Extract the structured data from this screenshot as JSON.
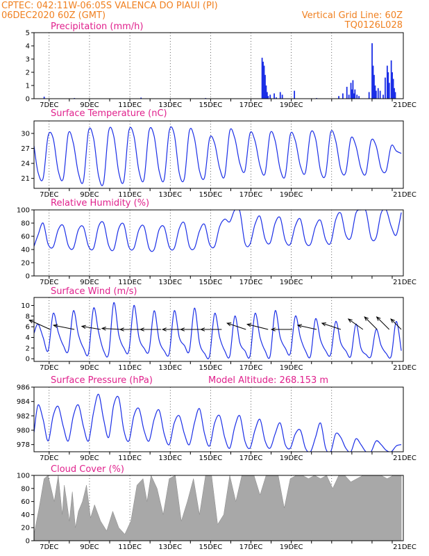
{
  "header": {
    "line1": "CPTEC:   042:11W-06:05S   VALENCA DO PIAUI (PI)",
    "line2": "06DEC2020 60Z (GMT)",
    "grid_note": "Vertical Grid Line: 60Z",
    "code": "TQ0126L028"
  },
  "x_dates": [
    "7DEC",
    "9DEC",
    "11DEC",
    "13DEC",
    "15DEC",
    "17DEC",
    "19DEC",
    "21DEC"
  ],
  "colors": {
    "header": "#f08020",
    "title": "#e0208c",
    "series": "#1a2ee6",
    "cloud": "#a8a8a8"
  },
  "chart_data": [
    {
      "type": "bar",
      "title": "Precipitation (mm/h)",
      "ylim": [
        0,
        5
      ],
      "yticks": [
        "0",
        "1",
        "2",
        "3",
        "4",
        "5"
      ],
      "x_unit": "days after 06DEC 06Z",
      "series": [
        {
          "x": [
            0.5,
            2.0,
            5.3,
            8.5,
            11.3,
            11.35,
            11.4,
            11.45,
            11.5,
            11.55,
            11.6,
            11.7,
            11.9,
            12.0,
            12.2,
            12.3,
            12.9,
            14.0,
            15.1,
            15.3,
            15.5,
            15.6,
            15.7,
            15.75,
            15.8,
            15.85,
            15.9,
            16.0,
            16.1,
            16.6,
            16.75,
            16.8,
            16.85,
            16.9,
            16.95,
            17.05,
            17.15,
            17.3,
            17.4,
            17.5,
            17.55,
            17.6,
            17.7,
            17.75,
            17.8,
            17.85,
            17.9
          ],
          "values": [
            0.15,
            0.05,
            0.08,
            0.05,
            3.1,
            2.8,
            2.5,
            1.8,
            1.0,
            0.5,
            0.2,
            0.3,
            0.4,
            0.1,
            0.5,
            0.3,
            0.6,
            0.05,
            0.2,
            0.4,
            0.9,
            0.3,
            1.2,
            0.7,
            1.4,
            0.4,
            0.7,
            0.3,
            0.2,
            0.5,
            4.2,
            2.5,
            1.8,
            1.0,
            0.6,
            0.8,
            0.6,
            0.3,
            1.6,
            2.5,
            2.0,
            1.2,
            2.9,
            2.0,
            1.5,
            0.8,
            0.5
          ]
        }
      ]
    },
    {
      "type": "line",
      "title": "Surface Temperature (nC)",
      "ylim": [
        19,
        32.5
      ],
      "yticks": [
        "21",
        "24",
        "27",
        "30"
      ],
      "x_unit": "days after 06DEC 06Z",
      "series": [
        {
          "x": [
            0,
            0.2,
            0.45,
            0.7,
            0.95,
            1.2,
            1.45,
            1.7,
            1.95,
            2.2,
            2.45,
            2.7,
            2.95,
            3.2,
            3.45,
            3.7,
            3.95,
            4.2,
            4.45,
            4.7,
            4.95,
            5.2,
            5.45,
            5.7,
            5.95,
            6.2,
            6.45,
            6.7,
            6.95,
            7.2,
            7.45,
            7.7,
            7.95,
            8.2,
            8.45,
            8.7,
            8.95,
            9.2,
            9.45,
            9.7,
            9.95,
            10.2,
            10.45,
            10.7,
            10.95,
            11.2,
            11.45,
            11.7,
            11.95,
            12.2,
            12.45,
            12.7,
            12.95,
            13.2,
            13.45,
            13.7,
            13.95,
            14.2,
            14.45,
            14.7,
            14.95,
            15.2,
            15.45,
            15.7,
            15.95,
            16.2,
            16.45,
            16.7,
            16.95,
            17.2,
            17.45,
            17.7,
            17.95,
            18.2
          ],
          "values": [
            27.5,
            22.2,
            21.0,
            29.5,
            29.0,
            22.5,
            21.0,
            30.0,
            28.0,
            22.0,
            20.5,
            30.5,
            29.0,
            21.5,
            20.2,
            30.5,
            29.5,
            22.2,
            20.5,
            30.5,
            29.5,
            22.5,
            20.8,
            30.5,
            29.5,
            22.5,
            20.8,
            30.5,
            29.8,
            22.0,
            21.0,
            30.5,
            29.0,
            22.5,
            21.2,
            29.0,
            28.0,
            23.0,
            21.5,
            30.5,
            29.0,
            24.0,
            22.5,
            30.0,
            28.5,
            23.5,
            22.0,
            30.0,
            28.5,
            22.8,
            21.5,
            29.8,
            28.5,
            23.5,
            22.2,
            30.0,
            29.0,
            22.5,
            21.8,
            30.2,
            28.5,
            22.8,
            22.2,
            29.0,
            27.5,
            23.0,
            22.0,
            28.5,
            27.5,
            23.0,
            22.5,
            27.5,
            26.5,
            26.0
          ]
        }
      ]
    },
    {
      "type": "line",
      "title": "Relative Humidity (%)",
      "ylim": [
        0,
        100
      ],
      "yticks": [
        "0",
        "20",
        "40",
        "60",
        "80",
        "100"
      ],
      "x_unit": "days after 06DEC 06Z",
      "series": [
        {
          "x": [
            0,
            0.2,
            0.45,
            0.7,
            0.95,
            1.2,
            1.45,
            1.7,
            1.95,
            2.2,
            2.45,
            2.7,
            2.95,
            3.2,
            3.45,
            3.7,
            3.95,
            4.2,
            4.45,
            4.7,
            4.95,
            5.2,
            5.45,
            5.7,
            5.95,
            6.2,
            6.45,
            6.7,
            6.95,
            7.2,
            7.45,
            7.7,
            7.95,
            8.2,
            8.45,
            8.7,
            8.95,
            9.2,
            9.45,
            9.7,
            9.95,
            10.2,
            10.45,
            10.7,
            10.95,
            11.2,
            11.45,
            11.7,
            11.95,
            12.2,
            12.45,
            12.7,
            12.95,
            13.2,
            13.45,
            13.7,
            13.95,
            14.2,
            14.45,
            14.7,
            14.95,
            15.2,
            15.45,
            15.7,
            15.95,
            16.2,
            16.45,
            16.7,
            16.95,
            17.2,
            17.45,
            17.7,
            17.95,
            18.2
          ],
          "values": [
            45,
            62,
            80,
            48,
            44,
            70,
            76,
            46,
            42,
            70,
            74,
            45,
            42,
            75,
            80,
            46,
            40,
            72,
            78,
            44,
            42,
            70,
            75,
            42,
            40,
            70,
            74,
            44,
            42,
            72,
            80,
            45,
            42,
            68,
            78,
            48,
            45,
            75,
            86,
            82,
            100,
            98,
            50,
            48,
            78,
            90,
            56,
            50,
            80,
            88,
            54,
            48,
            76,
            86,
            52,
            48,
            75,
            84,
            55,
            50,
            85,
            95,
            62,
            58,
            95,
            100,
            98,
            58,
            58,
            95,
            100,
            75,
            62,
            96
          ]
        }
      ]
    },
    {
      "type": "line",
      "title": "Surface Wind (m/s)",
      "ylim": [
        -0.5,
        11.5
      ],
      "yticks": [
        "0",
        "2",
        "4",
        "6",
        "8",
        "10"
      ],
      "x_unit": "days after 06DEC 06Z",
      "series": [
        {
          "x": [
            0,
            0.2,
            0.45,
            0.7,
            0.95,
            1.2,
            1.45,
            1.7,
            1.95,
            2.2,
            2.45,
            2.7,
            2.95,
            3.2,
            3.45,
            3.7,
            3.95,
            4.2,
            4.45,
            4.7,
            4.95,
            5.2,
            5.45,
            5.7,
            5.95,
            6.2,
            6.45,
            6.7,
            6.95,
            7.2,
            7.45,
            7.7,
            7.95,
            8.2,
            8.45,
            8.7,
            8.95,
            9.2,
            9.45,
            9.7,
            9.95,
            10.2,
            10.45,
            10.7,
            10.95,
            11.2,
            11.45,
            11.7,
            11.95,
            12.2,
            12.45,
            12.7,
            12.95,
            13.2,
            13.45,
            13.7,
            13.95,
            14.2,
            14.45,
            14.7,
            14.95,
            15.2,
            15.45,
            15.7,
            15.95,
            16.2,
            16.45,
            16.7,
            16.95,
            17.2,
            17.45,
            17.7,
            17.95,
            18.2
          ],
          "values": [
            4.8,
            6.5,
            4.0,
            1.5,
            8.5,
            5.0,
            2.5,
            1.5,
            9.0,
            4.5,
            2.0,
            1.0,
            9.5,
            5.0,
            1.5,
            1.0,
            10.5,
            4.5,
            2.0,
            1.5,
            10.0,
            4.0,
            2.0,
            1.5,
            9.0,
            3.5,
            1.5,
            1.0,
            9.0,
            4.0,
            2.5,
            1.5,
            9.5,
            3.0,
            1.0,
            0.5,
            8.5,
            4.0,
            1.5,
            0.5,
            8.0,
            3.0,
            1.5,
            0.5,
            8.5,
            4.0,
            1.5,
            0.5,
            9.0,
            4.0,
            2.0,
            1.0,
            8.0,
            4.0,
            1.5,
            0.5,
            7.5,
            3.5,
            1.5,
            0.8,
            7.0,
            3.0,
            1.5,
            0.5,
            6.5,
            2.0,
            0.8,
            0.5,
            5.5,
            2.5,
            1.0,
            0.5,
            7.0,
            1.5
          ]
        }
      ],
      "vectors": {
        "x": [
          0.8,
          2.0,
          3.3,
          4.3,
          5.3,
          6.3,
          7.4,
          8.3,
          9.3,
          10.5,
          11.6,
          12.8,
          14.0,
          15.2,
          16.3,
          17.0,
          17.6,
          18.2
        ],
        "u": [
          -1.0,
          -1.0,
          -0.9,
          -0.9,
          -1.0,
          -1.0,
          -1.0,
          -1.0,
          -1.0,
          -0.9,
          -1.0,
          -1.0,
          -0.9,
          -0.9,
          -0.7,
          -0.6,
          -0.6,
          -0.5
        ],
        "v": [
          0.45,
          0.2,
          0.15,
          0.05,
          0.0,
          0.0,
          0.0,
          0.0,
          0.0,
          0.3,
          0.25,
          0.0,
          0.2,
          0.3,
          0.5,
          0.6,
          0.6,
          0.5
        ]
      }
    },
    {
      "type": "line",
      "title": "Surface Pressure (hPa)",
      "annotation": "Model Altitude: 268.153 m",
      "ylim": [
        977,
        986
      ],
      "yticks": [
        "978",
        "980",
        "982",
        "984",
        "986"
      ],
      "x_unit": "days after 06DEC 06Z",
      "series": [
        {
          "x": [
            0,
            0.2,
            0.45,
            0.7,
            0.95,
            1.2,
            1.45,
            1.7,
            1.95,
            2.2,
            2.45,
            2.7,
            2.95,
            3.2,
            3.45,
            3.7,
            3.95,
            4.2,
            4.45,
            4.7,
            4.95,
            5.2,
            5.45,
            5.7,
            5.95,
            6.2,
            6.45,
            6.7,
            6.95,
            7.2,
            7.45,
            7.7,
            7.95,
            8.2,
            8.45,
            8.7,
            8.95,
            9.2,
            9.45,
            9.7,
            9.95,
            10.2,
            10.45,
            10.7,
            10.95,
            11.2,
            11.45,
            11.7,
            11.95,
            12.2,
            12.45,
            12.7,
            12.95,
            13.2,
            13.45,
            13.7,
            13.95,
            14.2,
            14.45,
            14.7,
            14.95,
            15.2,
            15.45,
            15.7,
            15.95,
            16.2,
            16.45,
            16.7,
            16.95,
            17.2,
            17.45,
            17.7,
            17.95,
            18.2
          ],
          "values": [
            979.7,
            983.5,
            981.5,
            978.5,
            982.0,
            983.3,
            980.5,
            978.5,
            982.0,
            983.5,
            980.5,
            978.5,
            982.5,
            985.0,
            981.5,
            979.0,
            983.5,
            984.5,
            980.0,
            978.5,
            982.0,
            983.0,
            980.0,
            978.5,
            981.5,
            982.8,
            979.5,
            978.0,
            981.0,
            982.0,
            979.5,
            978.0,
            981.0,
            983.0,
            979.5,
            977.8,
            981.0,
            982.0,
            979.0,
            977.5,
            980.5,
            982.0,
            978.5,
            977.5,
            980.0,
            981.5,
            978.5,
            977.5,
            979.5,
            981.0,
            978.0,
            977.5,
            979.5,
            980.0,
            977.5,
            977.0,
            979.0,
            981.0,
            977.5,
            977.0,
            979.5,
            979.0,
            977.5,
            977.0,
            978.8,
            978.0,
            977.0,
            977.0,
            978.5,
            978.0,
            977.2,
            977.0,
            977.8,
            978.0
          ]
        }
      ]
    },
    {
      "type": "area",
      "title": "Cloud Cover (%)",
      "ylim": [
        0,
        100
      ],
      "yticks": [
        "0",
        "20",
        "40",
        "60",
        "80",
        "100"
      ],
      "x_unit": "days after 06DEC 06Z",
      "series": [
        {
          "x": [
            0,
            0.25,
            0.5,
            0.7,
            0.85,
            1.0,
            1.2,
            1.4,
            1.5,
            1.6,
            1.75,
            1.9,
            2.05,
            2.2,
            2.4,
            2.6,
            2.8,
            3.0,
            3.3,
            3.6,
            3.9,
            4.2,
            4.5,
            4.8,
            5.1,
            5.4,
            5.6,
            5.8,
            6.1,
            6.4,
            6.7,
            7.0,
            7.3,
            7.6,
            7.9,
            8.2,
            8.5,
            8.8,
            9.1,
            9.4,
            9.7,
            10.0,
            10.3,
            10.6,
            10.9,
            11.2,
            11.5,
            11.8,
            12.1,
            12.4,
            12.7,
            13.0,
            13.3,
            13.6,
            13.9,
            14.2,
            14.5,
            14.8,
            15.1,
            15.4,
            15.7,
            16.0,
            16.3,
            16.6,
            16.9,
            17.2,
            17.5,
            17.8,
            18.2
          ],
          "values": [
            10,
            50,
            95,
            100,
            80,
            60,
            100,
            40,
            85,
            65,
            30,
            75,
            20,
            45,
            60,
            85,
            35,
            55,
            30,
            15,
            45,
            20,
            10,
            30,
            85,
            95,
            60,
            100,
            80,
            40,
            95,
            100,
            30,
            60,
            95,
            40,
            100,
            100,
            25,
            40,
            100,
            60,
            100,
            100,
            100,
            70,
            100,
            100,
            100,
            50,
            95,
            100,
            100,
            95,
            100,
            95,
            100,
            80,
            100,
            100,
            90,
            95,
            100,
            100,
            100,
            100,
            95,
            100,
            100
          ]
        }
      ]
    }
  ]
}
